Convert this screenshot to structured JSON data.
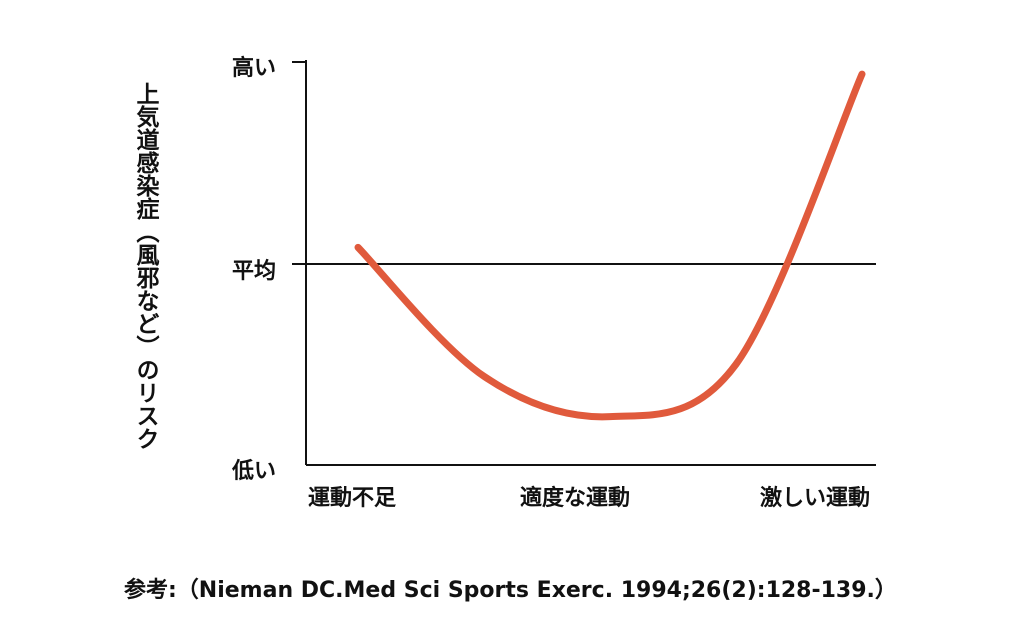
{
  "chart_data": {
    "type": "line",
    "ylabel": "上気道感染症（風邪など）のリスク",
    "xlabel": "",
    "categories": [
      "運動不足",
      "適度な運動",
      "激しい運動"
    ],
    "y_ticks": [
      "低い",
      "平均",
      "高い"
    ],
    "ylim": [
      0,
      1
    ],
    "reference_line": {
      "y": 0.5
    },
    "series": [
      {
        "color": "#e05a3c",
        "points": [
          {
            "x": 0.0,
            "y": 0.54
          },
          {
            "x": 0.25,
            "y": 0.22
          },
          {
            "x": 0.5,
            "y": 0.12
          },
          {
            "x": 0.75,
            "y": 0.25
          },
          {
            "x": 1.0,
            "y": 0.97
          }
        ]
      }
    ],
    "grid": false
  },
  "citation": "参考:（Nieman DC.Med Sci Sports Exerc. 1994;26(2):128-139.）"
}
